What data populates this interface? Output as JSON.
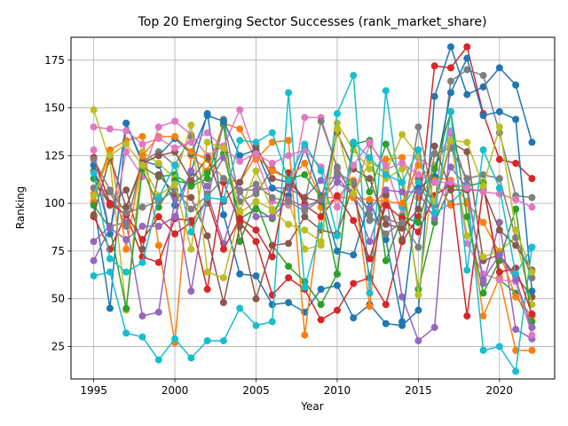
{
  "chart_data": {
    "type": "line",
    "title": "Top 20 Emerging Sector Successes (rank_market_share)",
    "xlabel": "Year",
    "ylabel": "Ranking",
    "xlim": [
      1993.6,
      2023.4
    ],
    "ylim": [
      8,
      187
    ],
    "xticks": [
      1995,
      2000,
      2005,
      2010,
      2015,
      2020
    ],
    "yticks": [
      25,
      50,
      75,
      100,
      125,
      150,
      175
    ],
    "grid": true,
    "legend": "none",
    "x": [
      1995,
      1996,
      1997,
      1998,
      1999,
      2000,
      2001,
      2002,
      2003,
      2004,
      2005,
      2006,
      2007,
      2008,
      2009,
      2010,
      2011,
      2012,
      2013,
      2014,
      2015,
      2016,
      2017,
      2018,
      2019,
      2020,
      2021,
      2022
    ],
    "series": [
      {
        "color": "#1f77b4",
        "values": [
          101,
          45,
          142,
          122,
          120,
          99,
          116,
          147,
          94,
          63,
          62,
          47,
          48,
          43,
          55,
          57,
          40,
          47,
          37,
          36,
          44,
          156,
          182,
          157,
          161,
          171,
          162,
          132
        ]
      },
      {
        "color": "#ff7f0e",
        "values": [
          105,
          128,
          133,
          135,
          78,
          27,
          125,
          117,
          142,
          139,
          123,
          132,
          133,
          31,
          98,
          103,
          112,
          46,
          123,
          124,
          103,
          114,
          112,
          101,
          41,
          61,
          23,
          23
        ]
      },
      {
        "color": "#2ca02c",
        "values": [
          113,
          99,
          98,
          119,
          114,
          115,
          109,
          113,
          141,
          80,
          101,
          78,
          67,
          59,
          47,
          63,
          132,
          106,
          131,
          111,
          55,
          90,
          109,
          109,
          111,
          60,
          53,
          35
        ]
      },
      {
        "color": "#d62728",
        "values": [
          93,
          76,
          94,
          72,
          69,
          92,
          91,
          55,
          111,
          90,
          80,
          52,
          61,
          55,
          39,
          44,
          58,
          61,
          47,
          80,
          93,
          172,
          171,
          182,
          147,
          123,
          121,
          113
        ]
      },
      {
        "color": "#9467bd",
        "values": [
          80,
          88,
          90,
          41,
          43,
          103,
          54,
          105,
          79,
          107,
          107,
          108,
          108,
          103,
          112,
          114,
          103,
          80,
          105,
          51,
          28,
          35,
          137,
          110,
          58,
          90,
          34,
          29
        ]
      },
      {
        "color": "#8c564b",
        "values": [
          117,
          99,
          107,
          76,
          115,
          105,
          103,
          83,
          48,
          88,
          50,
          78,
          79,
          93,
          86,
          84,
          110,
          61,
          104,
          81,
          113,
          99,
          132,
          127,
          70,
          73,
          62,
          51
        ]
      },
      {
        "color": "#e377c2",
        "values": [
          128,
          84,
          127,
          114,
          140,
          143,
          136,
          125,
          130,
          149,
          124,
          101,
          99,
          145,
          145,
          118,
          103,
          131,
          120,
          94,
          124,
          118,
          138,
          79,
          63,
          60,
          59,
          31
        ]
      },
      {
        "color": "#7f7f7f",
        "values": [
          108,
          106,
          88,
          122,
          127,
          120,
          135,
          100,
          144,
          101,
          105,
          118,
          113,
          100,
          143,
          119,
          104,
          91,
          92,
          89,
          140,
          99,
          164,
          170,
          167,
          137,
          104,
          103
        ]
      },
      {
        "color": "#bcbd22",
        "values": [
          149,
          122,
          44,
          127,
          121,
          113,
          141,
          64,
          61,
          95,
          101,
          97,
          101,
          76,
          78,
          142,
          128,
          118,
          113,
          118,
          52,
          120,
          133,
          83,
          72,
          75,
          82,
          47
        ]
      },
      {
        "color": "#17becf",
        "values": [
          62,
          64,
          32,
          30,
          18,
          29,
          19,
          28,
          28,
          45,
          36,
          38,
          158,
          56,
          88,
          147,
          167,
          53,
          159,
          98,
          111,
          95,
          100,
          109,
          23,
          25,
          12,
          77
        ]
      },
      {
        "color": "#1f77b4",
        "values": [
          120,
          84,
          142,
          121,
          125,
          134,
          126,
          146,
          143,
          125,
          128,
          108,
          104,
          129,
          104,
          75,
          73,
          101,
          81,
          38,
          108,
          114,
          158,
          176,
          146,
          148,
          144,
          54
        ]
      },
      {
        "color": "#ff7f0e",
        "values": [
          101,
          128,
          76,
          125,
          135,
          135,
          127,
          123,
          113,
          111,
          125,
          117,
          113,
          121,
          103,
          103,
          103,
          102,
          101,
          100,
          120,
          112,
          99,
          100,
          90,
          74,
          51,
          41
        ]
      },
      {
        "color": "#2ca02c",
        "values": [
          99,
          87,
          45,
          118,
          98,
          112,
          110,
          116,
          126,
          92,
          97,
          92,
          113,
          115,
          103,
          63,
          131,
          133,
          70,
          93,
          90,
          118,
          148,
          93,
          53,
          70,
          97,
          38
        ]
      },
      {
        "color": "#d62728",
        "values": [
          124,
          100,
          94,
          81,
          93,
          84,
          90,
          102,
          76,
          92,
          86,
          72,
          116,
          99,
          93,
          104,
          91,
          71,
          99,
          92,
          85,
          104,
          110,
          41,
          109,
          64,
          66,
          42
        ]
      },
      {
        "color": "#9467bd",
        "values": [
          70,
          87,
          81,
          88,
          88,
          93,
          117,
          109,
          124,
          106,
          93,
          93,
          102,
          98,
          102,
          111,
          105,
          97,
          107,
          106,
          106,
          92,
          119,
          108,
          60,
          73,
          60,
          35
        ]
      },
      {
        "color": "#8c564b",
        "values": [
          94,
          124,
          98,
          121,
          125,
          127,
          112,
          124,
          101,
          111,
          130,
          113,
          111,
          103,
          101,
          137,
          118,
          113,
          89,
          87,
          97,
          130,
          107,
          107,
          107,
          86,
          78,
          65
        ]
      },
      {
        "color": "#e377c2",
        "values": [
          140,
          139,
          138,
          131,
          134,
          129,
          132,
          137,
          129,
          122,
          126,
          121,
          125,
          128,
          119,
          98,
          120,
          132,
          118,
          121,
          115,
          111,
          111,
          108,
          106,
          105,
          102,
          98
        ]
      },
      {
        "color": "#7f7f7f",
        "values": [
          123,
          107,
          95,
          98,
          101,
          107,
          97,
          104,
          113,
          106,
          110,
          103,
          101,
          96,
          102,
          116,
          111,
          94,
          84,
          90,
          77,
          126,
          129,
          113,
          115,
          113,
          82,
          61
        ]
      },
      {
        "color": "#bcbd22",
        "values": [
          104,
          125,
          131,
          120,
          104,
          110,
          76,
          132,
          129,
          96,
          117,
          96,
          89,
          86,
          80,
          139,
          105,
          122,
          116,
          136,
          125,
          101,
          133,
          132,
          109,
          140,
          86,
          64
        ]
      },
      {
        "color": "#17becf",
        "values": [
          116,
          71,
          64,
          69,
          103,
          120,
          85,
          103,
          102,
          133,
          132,
          137,
          112,
          131,
          117,
          83,
          132,
          124,
          115,
          111,
          128,
          95,
          148,
          65,
          128,
          108,
          63,
          77
        ]
      }
    ]
  }
}
